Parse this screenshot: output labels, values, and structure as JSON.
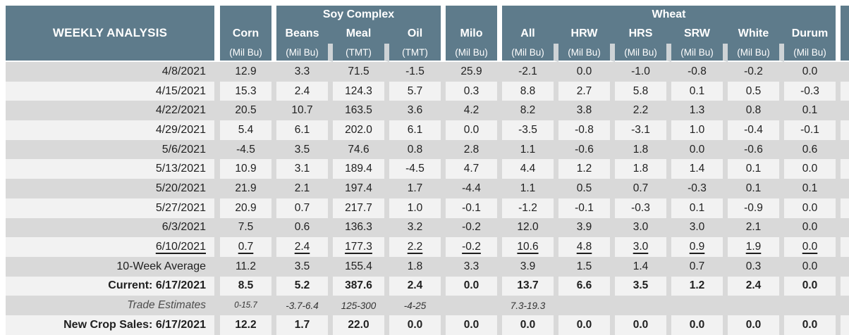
{
  "chart_data": {
    "type": "table",
    "title": "WEEKLY ANALYSIS",
    "column_groups": [
      {
        "label": "Soy Complex",
        "columns": [
          "Beans",
          "Meal",
          "Oil"
        ]
      },
      {
        "label": "Wheat",
        "columns": [
          "All",
          "HRW",
          "HRS",
          "SRW",
          "White",
          "Durum"
        ]
      }
    ],
    "columns": [
      {
        "name": "Corn",
        "unit": "(Mil Bu)"
      },
      {
        "name": "Beans",
        "unit": "(Mil Bu)"
      },
      {
        "name": "Meal",
        "unit": "(TMT)"
      },
      {
        "name": "Oil",
        "unit": "(TMT)"
      },
      {
        "name": "Milo",
        "unit": "(Mil Bu)"
      },
      {
        "name": "All",
        "unit": "(Mil Bu)"
      },
      {
        "name": "HRW",
        "unit": "(Mil Bu)"
      },
      {
        "name": "HRS",
        "unit": "(Mil Bu)"
      },
      {
        "name": "SRW",
        "unit": "(Mil Bu)"
      },
      {
        "name": "White",
        "unit": "(Mil Bu)"
      },
      {
        "name": "Durum",
        "unit": "(Mil Bu)"
      }
    ],
    "rows": [
      {
        "label": "4/8/2021",
        "style": "normal",
        "values": [
          "12.9",
          "3.3",
          "71.5",
          "-1.5",
          "25.9",
          "-2.1",
          "0.0",
          "-1.0",
          "-0.8",
          "-0.2",
          "0.0"
        ]
      },
      {
        "label": "4/15/2021",
        "style": "normal",
        "values": [
          "15.3",
          "2.4",
          "124.3",
          "5.7",
          "0.3",
          "8.8",
          "2.7",
          "5.8",
          "0.1",
          "0.5",
          "-0.3"
        ]
      },
      {
        "label": "4/22/2021",
        "style": "normal",
        "values": [
          "20.5",
          "10.7",
          "163.5",
          "3.6",
          "4.2",
          "8.2",
          "3.8",
          "2.2",
          "1.3",
          "0.8",
          "0.1"
        ]
      },
      {
        "label": "4/29/2021",
        "style": "normal",
        "values": [
          "5.4",
          "6.1",
          "202.0",
          "6.1",
          "0.0",
          "-3.5",
          "-0.8",
          "-3.1",
          "1.0",
          "-0.4",
          "-0.1"
        ]
      },
      {
        "label": "5/6/2021",
        "style": "normal",
        "values": [
          "-4.5",
          "3.5",
          "74.6",
          "0.8",
          "2.8",
          "1.1",
          "-0.6",
          "1.8",
          "0.0",
          "-0.6",
          "0.6"
        ]
      },
      {
        "label": "5/13/2021",
        "style": "normal",
        "values": [
          "10.9",
          "3.1",
          "189.4",
          "-4.5",
          "4.7",
          "4.4",
          "1.2",
          "1.8",
          "1.4",
          "0.1",
          "0.0"
        ]
      },
      {
        "label": "5/20/2021",
        "style": "normal",
        "values": [
          "21.9",
          "2.1",
          "197.4",
          "1.7",
          "-4.4",
          "1.1",
          "0.5",
          "0.7",
          "-0.3",
          "0.1",
          "0.1"
        ]
      },
      {
        "label": "5/27/2021",
        "style": "normal",
        "values": [
          "20.9",
          "0.7",
          "217.7",
          "1.0",
          "-0.1",
          "-1.2",
          "-0.1",
          "-0.3",
          "0.1",
          "-0.9",
          "0.0"
        ]
      },
      {
        "label": "6/3/2021",
        "style": "normal",
        "values": [
          "7.5",
          "0.6",
          "136.3",
          "3.2",
          "-0.2",
          "12.0",
          "3.9",
          "3.0",
          "3.0",
          "2.1",
          "0.0"
        ]
      },
      {
        "label": "6/10/2021",
        "style": "underline",
        "values": [
          "0.7",
          "2.4",
          "177.3",
          "2.2",
          "-0.2",
          "10.6",
          "4.8",
          "3.0",
          "0.9",
          "1.9",
          "0.0"
        ]
      },
      {
        "label": "10-Week Average",
        "style": "normal",
        "values": [
          "11.2",
          "3.5",
          "155.4",
          "1.8",
          "3.3",
          "3.9",
          "1.5",
          "1.4",
          "0.7",
          "0.3",
          "0.0"
        ]
      },
      {
        "label": "Current: 6/17/2021",
        "style": "bold",
        "values": [
          "8.5",
          "5.2",
          "387.6",
          "2.4",
          "0.0",
          "13.7",
          "6.6",
          "3.5",
          "1.2",
          "2.4",
          "0.0"
        ]
      },
      {
        "label": "Trade Estimates",
        "style": "estimates",
        "small_cols": [
          0
        ],
        "values": [
          "0-15.7",
          "-3.7-6.4",
          "125-300",
          "-4-25",
          "",
          "7.3-19.3",
          "",
          "",
          "",
          "",
          ""
        ]
      },
      {
        "label": "New Crop Sales: 6/17/2021",
        "style": "bold",
        "values": [
          "12.2",
          "1.7",
          "22.0",
          "0.0",
          "0.0",
          "0.0",
          "0.0",
          "0.0",
          "0.0",
          "0.0",
          "0.0"
        ]
      }
    ]
  },
  "colors": {
    "header_bg": "#5e7b8b",
    "header_text": "#ffffff",
    "row_dark": "#d9d9d9",
    "row_light": "#f2f2f2",
    "unit_separator": "#ced3d6",
    "body_text": "#1f1f1f",
    "estimates_text": "#4d4d4d"
  }
}
